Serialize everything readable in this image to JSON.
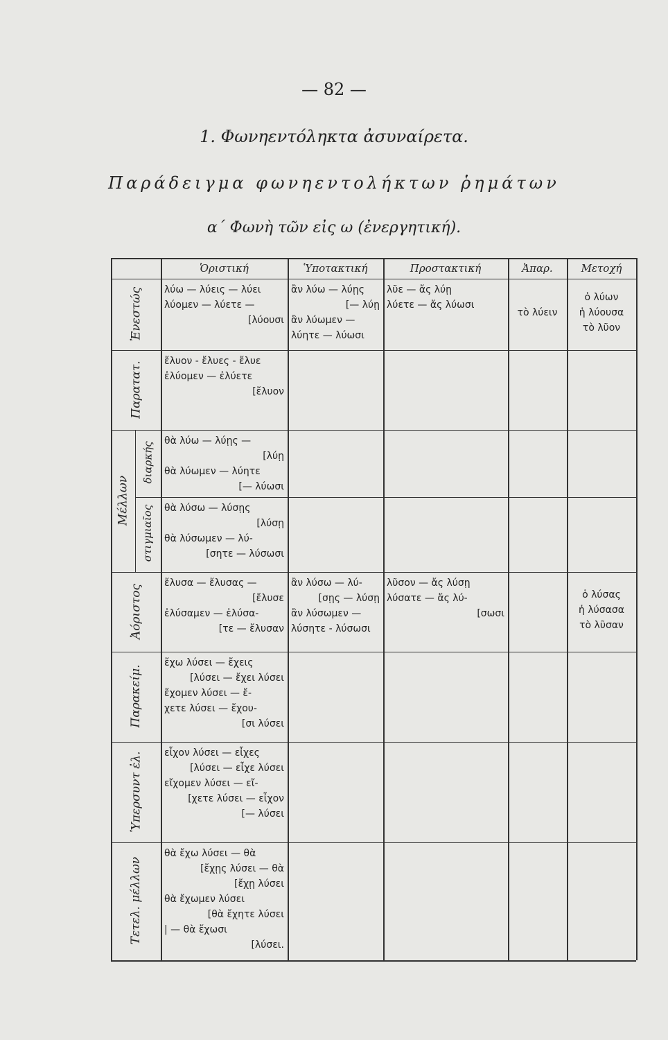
{
  "header": {
    "page_number": "— 82 —",
    "title": "1. Φωνηεντόληκτα ἀσυναίρετα.",
    "subtitle": "Παράδειγμα φωνηεντολήκτων ῥημάτων",
    "voice": "α΄ Φωνὴ τῶν εἰς ω (ἐνεργητική)."
  },
  "table": {
    "columns": [
      "Ὁριστική",
      "Ὑποτακτική",
      "Προστακτική",
      "Ἀπαρ.",
      "Μετοχή"
    ],
    "groups": [
      {
        "label": "Ἐνεστώς",
        "rows": [
          {
            "cells": [
              [
                "λύω — λύεις — λύει",
                "λύομεν — λύετε —",
                "[λύουσι"
              ],
              [
                "ἂν λύω — λύῃς",
                "[— λύῃ",
                "ἂν λύωμεν —",
                "λύητε — λύωσι"
              ],
              [
                "λῦε — ἄς λύῃ",
                "λύετε — ἄς λύωσι"
              ],
              [
                "τὸ λύειν"
              ],
              [
                "ὁ λύων",
                "ἡ λύουσα",
                "τὸ λῦον"
              ]
            ]
          }
        ]
      },
      {
        "label": "Παρατατ.",
        "rows": [
          {
            "cells": [
              [
                "ἔλυον - ἔλυες - ἔλυε",
                "ἐλύομεν — ἐλύετε",
                "[ἔλυον"
              ],
              [],
              [],
              [],
              []
            ]
          }
        ]
      },
      {
        "label": "Μέλλων",
        "rows": [
          {
            "sublabel": "διαρκής",
            "cells": [
              [
                "θὰ λύω — λύῃς —",
                "[λύῃ",
                "θὰ λύωμεν — λύητε",
                "[— λύωσι"
              ],
              [],
              [],
              [],
              []
            ]
          },
          {
            "sublabel": "στιγμιαῖος",
            "cells": [
              [
                "θὰ λύσω — λύσῃς",
                "[λύσῃ",
                "θὰ λύσωμεν — λύ-",
                "[σητε — λύσωσι"
              ],
              [],
              [],
              [],
              []
            ]
          }
        ]
      },
      {
        "label": "Ἀόριστος",
        "rows": [
          {
            "cells": [
              [
                "ἔλυσα — ἔλυσας —",
                "[ἔλυσε",
                "ἐλύσαμεν — ἐλύσα-",
                "[τε — ἔλυσαν"
              ],
              [
                "ἂν λύσω — λύ-",
                "[σῃς — λύσῃ",
                "ἂν λύσωμεν —",
                "λύσητε - λύσωσι"
              ],
              [
                "λῦσον — ἄς λύσῃ",
                "λύσατε — ἄς λύ-",
                "[σωσι"
              ],
              [],
              [
                "ὁ λύσας",
                "ἡ λύσασα",
                "τὸ λῦσαν"
              ]
            ]
          }
        ]
      },
      {
        "label": "Παρακείμ.",
        "rows": [
          {
            "cells": [
              [
                "ἔχω λύσει — ἔχεις",
                "[λύσει — ἔχει λύσει",
                "ἔχομεν λύσει — ἔ-",
                "χετε λύσει — ἔχου-",
                "[σι λύσει"
              ],
              [],
              [],
              [],
              []
            ]
          }
        ]
      },
      {
        "label": "Ὑπερσυντ ἐλ.",
        "rows": [
          {
            "cells": [
              [
                "εἶχον λύσει — εἶχες",
                "[λύσει — εἶχε λύσει",
                "εἴχομεν λύσει — εἴ-",
                "[χετε λύσει — εἶχον",
                "[— λύσει"
              ],
              [],
              [],
              [],
              []
            ]
          }
        ]
      },
      {
        "label": "Τετελ. μέλλων",
        "rows": [
          {
            "cells": [
              [
                "θὰ ἔχω λύσει — θὰ",
                "[ἔχῃς λύσει — θὰ",
                "[ἔχῃ λύσει",
                "θὰ ἔχωμεν λύσει",
                "[θὰ ἔχητε λύσει",
                "| — θὰ ἔχωσι",
                "[λύσει."
              ],
              [],
              [],
              [],
              []
            ]
          }
        ]
      }
    ]
  }
}
